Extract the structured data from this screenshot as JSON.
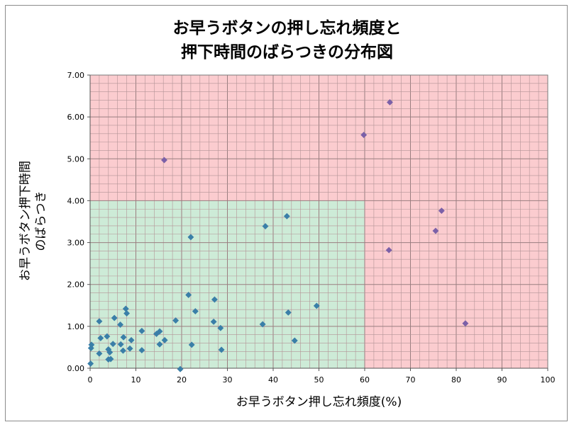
{
  "chart_data": {
    "type": "scatter",
    "title": [
      "お早うボタンの押し忘れ頻度と",
      "押下時間のばらつきの分布図"
    ],
    "xlabel": "お早うボタン押し忘れ頻度(%)",
    "ylabel": [
      "お早うボタン押下時間",
      "のばらつき"
    ],
    "xlim": [
      0,
      100
    ],
    "ylim": [
      0,
      7
    ],
    "x_ticks": [
      0,
      10,
      20,
      30,
      40,
      50,
      60,
      70,
      80,
      90,
      100
    ],
    "x_tick_labels": [
      "0",
      "10",
      "20",
      "30",
      "40",
      "50",
      "60",
      "70",
      "80",
      "90",
      "100"
    ],
    "y_ticks": [
      0,
      1,
      2,
      3,
      4,
      5,
      6,
      7
    ],
    "y_tick_labels": [
      "0.00",
      "1.00",
      "2.00",
      "3.00",
      "4.00",
      "5.00",
      "6.00",
      "7.00"
    ],
    "grid": true,
    "regions": [
      {
        "name": "normal",
        "x": [
          0,
          60
        ],
        "y": [
          0,
          4
        ],
        "color": "#cdebd7"
      },
      {
        "name": "alert",
        "x": [
          0,
          100
        ],
        "y": [
          0,
          7
        ],
        "color": "#fbcccf"
      }
    ],
    "series": [
      {
        "color": "#3a7fa8",
        "points": [
          [
            0.1,
            0.11
          ],
          [
            0.2,
            0.48
          ],
          [
            0.3,
            0.56
          ],
          [
            2.0,
            1.12
          ],
          [
            2.0,
            0.35
          ],
          [
            2.3,
            0.72
          ],
          [
            3.7,
            0.76
          ],
          [
            4.0,
            0.21
          ],
          [
            4.0,
            0.45
          ],
          [
            4.3,
            0.38
          ],
          [
            4.5,
            0.22
          ],
          [
            5.0,
            0.58
          ],
          [
            5.3,
            1.2
          ],
          [
            6.6,
            1.04
          ],
          [
            6.7,
            0.57
          ],
          [
            7.2,
            0.42
          ],
          [
            7.3,
            0.74
          ],
          [
            7.8,
            1.42
          ],
          [
            8.0,
            1.31
          ],
          [
            8.7,
            0.47
          ],
          [
            9.0,
            0.67
          ],
          [
            11.3,
            0.89
          ],
          [
            11.3,
            0.43
          ],
          [
            14.5,
            0.82
          ],
          [
            15.2,
            0.88
          ],
          [
            15.2,
            0.57
          ],
          [
            16.3,
            0.67
          ],
          [
            18.7,
            1.14
          ],
          [
            19.7,
            -0.02
          ],
          [
            21.5,
            1.75
          ],
          [
            22.0,
            3.13
          ],
          [
            22.2,
            0.56
          ],
          [
            23.0,
            1.36
          ],
          [
            27.0,
            1.11
          ],
          [
            27.2,
            1.64
          ],
          [
            28.5,
            0.96
          ],
          [
            28.7,
            0.44
          ],
          [
            37.7,
            1.05
          ],
          [
            38.3,
            3.39
          ],
          [
            43.0,
            3.63
          ],
          [
            43.3,
            1.33
          ],
          [
            44.7,
            0.66
          ],
          [
            49.5,
            1.49
          ]
        ]
      },
      {
        "color": "#7b60a8",
        "points": [
          [
            16.2,
            4.97
          ],
          [
            59.8,
            5.57
          ],
          [
            65.5,
            6.35
          ],
          [
            65.3,
            2.82
          ],
          [
            75.5,
            3.28
          ],
          [
            76.8,
            3.76
          ],
          [
            82.0,
            1.07
          ]
        ]
      }
    ]
  }
}
